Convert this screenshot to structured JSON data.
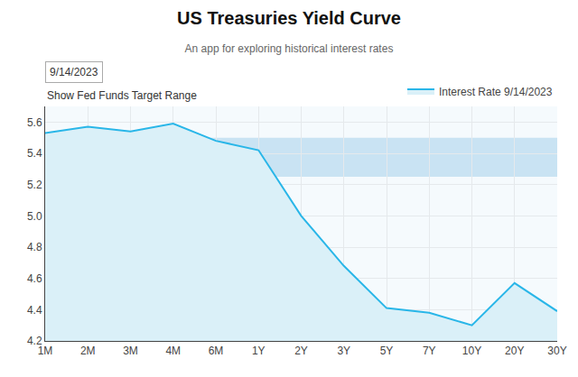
{
  "chart_data": {
    "type": "area",
    "title": "US Treasuries Yield Curve",
    "subtitle": "An app for exploring historical interest rates",
    "annotations": [
      "9/14/2023",
      "Show Fed Funds Target Range"
    ],
    "categories": [
      "1M",
      "2M",
      "3M",
      "4M",
      "6M",
      "1Y",
      "2Y",
      "3Y",
      "5Y",
      "7Y",
      "10Y",
      "20Y",
      "30Y"
    ],
    "series": [
      {
        "name": "Interest Rate 9/14/2023",
        "color": "#29b6e8",
        "values": [
          5.53,
          5.57,
          5.54,
          5.59,
          5.48,
          5.42,
          5.0,
          4.68,
          4.41,
          4.38,
          4.3,
          4.57,
          4.39
        ]
      }
    ],
    "fed_funds_target_range": [
      5.25,
      5.5
    ],
    "ylim": [
      4.2,
      5.7
    ],
    "yticks": [
      4.2,
      4.4,
      4.6,
      4.8,
      {
        "value": 5.0,
        "label": "5.0"
      },
      5.2,
      5.4,
      5.6
    ],
    "grid": true,
    "legend": "upper right"
  }
}
